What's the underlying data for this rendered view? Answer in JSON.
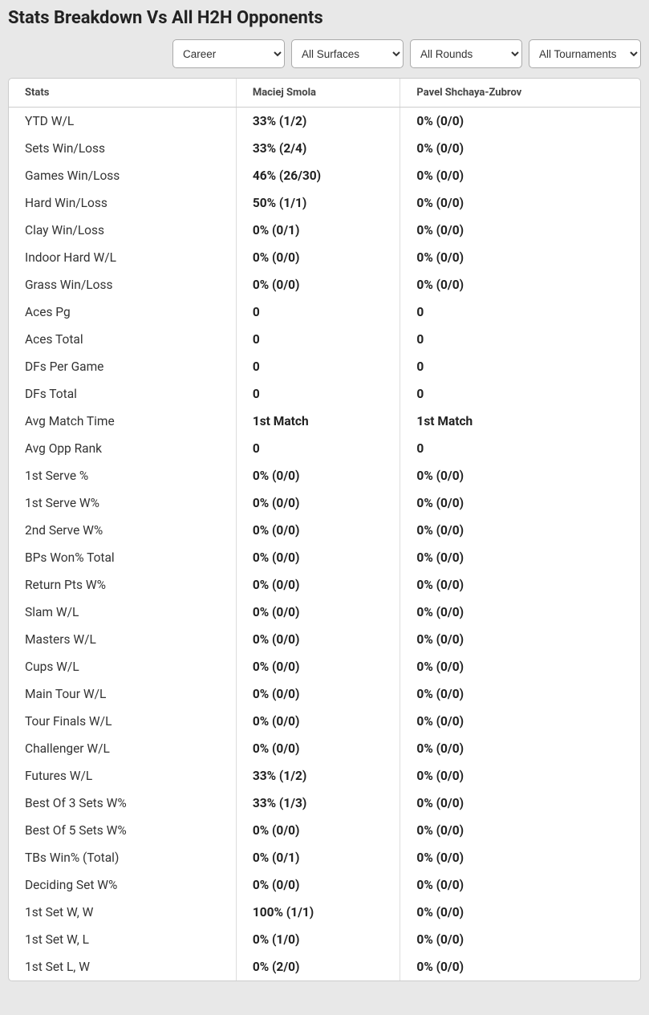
{
  "title": "Stats Breakdown Vs All H2H Opponents",
  "filters": {
    "period": {
      "selected": "Career",
      "options": [
        "Career"
      ]
    },
    "surface": {
      "selected": "All Surfaces",
      "options": [
        "All Surfaces"
      ]
    },
    "round": {
      "selected": "All Rounds",
      "options": [
        "All Rounds"
      ]
    },
    "tournament": {
      "selected": "All Tournaments",
      "options": [
        "All Tournaments"
      ]
    }
  },
  "table": {
    "columns": [
      "Stats",
      "Maciej Smola",
      "Pavel Shchaya-Zubrov"
    ],
    "rows": [
      [
        "YTD W/L",
        "33% (1/2)",
        "0% (0/0)"
      ],
      [
        "Sets Win/Loss",
        "33% (2/4)",
        "0% (0/0)"
      ],
      [
        "Games Win/Loss",
        "46% (26/30)",
        "0% (0/0)"
      ],
      [
        "Hard Win/Loss",
        "50% (1/1)",
        "0% (0/0)"
      ],
      [
        "Clay Win/Loss",
        "0% (0/1)",
        "0% (0/0)"
      ],
      [
        "Indoor Hard W/L",
        "0% (0/0)",
        "0% (0/0)"
      ],
      [
        "Grass Win/Loss",
        "0% (0/0)",
        "0% (0/0)"
      ],
      [
        "Aces Pg",
        "0",
        "0"
      ],
      [
        "Aces Total",
        "0",
        "0"
      ],
      [
        "DFs Per Game",
        "0",
        "0"
      ],
      [
        "DFs Total",
        "0",
        "0"
      ],
      [
        "Avg Match Time",
        "1st Match",
        "1st Match"
      ],
      [
        "Avg Opp Rank",
        "0",
        "0"
      ],
      [
        "1st Serve %",
        "0% (0/0)",
        "0% (0/0)"
      ],
      [
        "1st Serve W%",
        "0% (0/0)",
        "0% (0/0)"
      ],
      [
        "2nd Serve W%",
        "0% (0/0)",
        "0% (0/0)"
      ],
      [
        "BPs Won% Total",
        "0% (0/0)",
        "0% (0/0)"
      ],
      [
        "Return Pts W%",
        "0% (0/0)",
        "0% (0/0)"
      ],
      [
        "Slam W/L",
        "0% (0/0)",
        "0% (0/0)"
      ],
      [
        "Masters W/L",
        "0% (0/0)",
        "0% (0/0)"
      ],
      [
        "Cups W/L",
        "0% (0/0)",
        "0% (0/0)"
      ],
      [
        "Main Tour W/L",
        "0% (0/0)",
        "0% (0/0)"
      ],
      [
        "Tour Finals W/L",
        "0% (0/0)",
        "0% (0/0)"
      ],
      [
        "Challenger W/L",
        "0% (0/0)",
        "0% (0/0)"
      ],
      [
        "Futures W/L",
        "33% (1/2)",
        "0% (0/0)"
      ],
      [
        "Best Of 3 Sets W%",
        "33% (1/3)",
        "0% (0/0)"
      ],
      [
        "Best Of 5 Sets W%",
        "0% (0/0)",
        "0% (0/0)"
      ],
      [
        "TBs Win% (Total)",
        "0% (0/1)",
        "0% (0/0)"
      ],
      [
        "Deciding Set W%",
        "0% (0/0)",
        "0% (0/0)"
      ],
      [
        "1st Set W, W",
        "100% (1/1)",
        "0% (0/0)"
      ],
      [
        "1st Set W, L",
        "0% (1/0)",
        "0% (0/0)"
      ],
      [
        "1st Set L, W",
        "0% (2/0)",
        "0% (0/0)"
      ]
    ]
  }
}
